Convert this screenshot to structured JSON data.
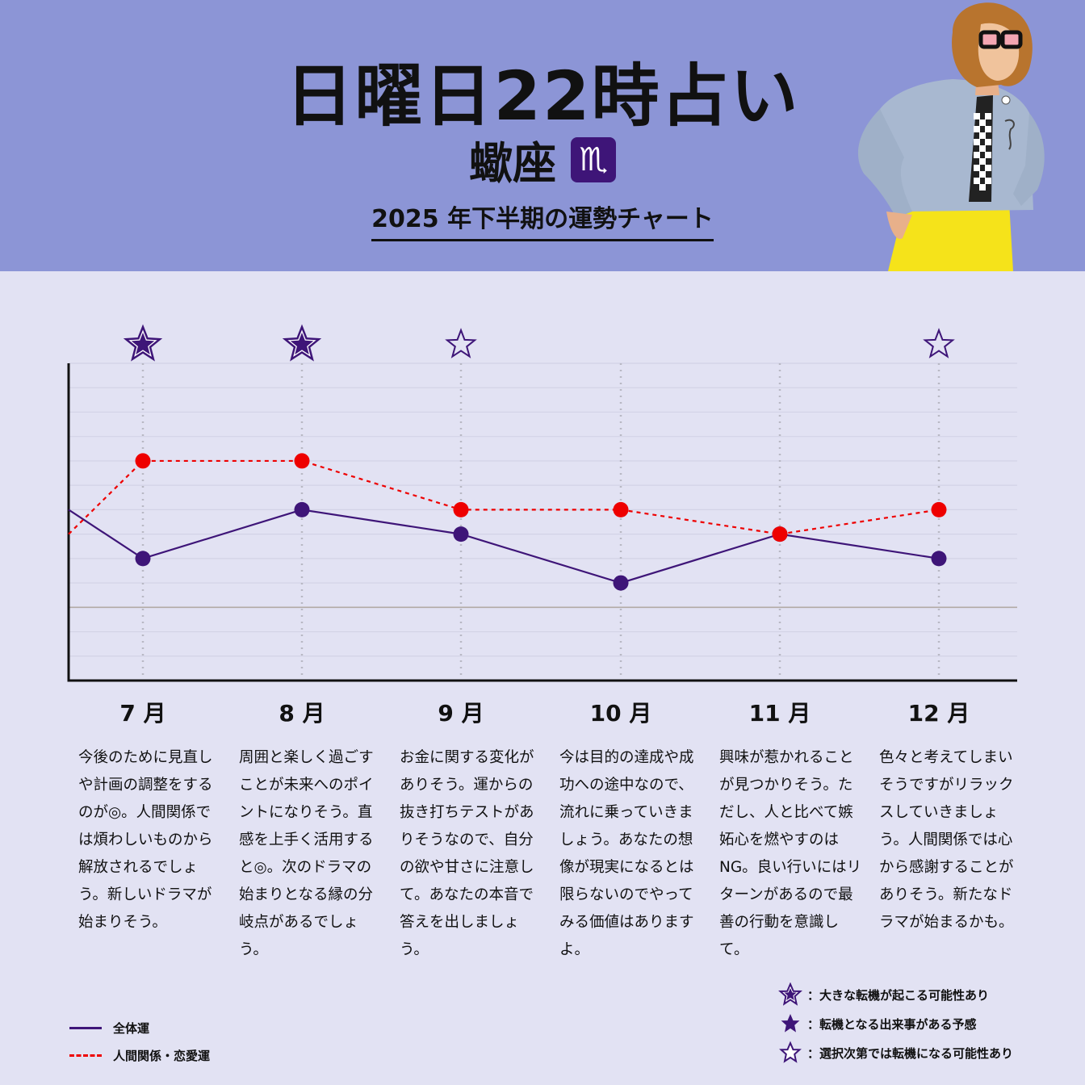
{
  "header": {
    "title": "日曜日22時占い",
    "sign_name": "蠍座",
    "sign_symbol": "♏",
    "subtitle": "2025 年下半期の運勢チャート"
  },
  "colors": {
    "header_bg": "#8c95d6",
    "page_bg": "#e2e2f3",
    "overall_line": "#3e1578",
    "love_line": "#ee0000"
  },
  "chart_data": {
    "type": "line",
    "categories": [
      "7 月",
      "8 月",
      "9 月",
      "10 月",
      "11 月",
      "12 月"
    ],
    "ylim": [
      -3,
      10
    ],
    "grid": true,
    "series": [
      {
        "name": "全体運",
        "values": [
          2,
          4,
          3,
          1,
          3,
          2
        ],
        "line_style": "solid",
        "start_value": 4
      },
      {
        "name": "人間関係・恋愛運",
        "values": [
          6,
          6,
          4,
          4,
          3,
          4
        ],
        "line_style": "dashed",
        "start_value": 3
      }
    ],
    "markers": [
      {
        "month": "7 月",
        "star": "large-filled"
      },
      {
        "month": "8 月",
        "star": "large-filled"
      },
      {
        "month": "9 月",
        "star": "outline"
      },
      {
        "month": "12 月",
        "star": "outline"
      }
    ]
  },
  "descriptions": [
    "今後のために見直しや計画の調整をするのが◎。人間関係では煩わしいものから解放されるでしょう。新しいドラマが始まりそう。",
    "周囲と楽しく過ごすことが未来へのポイントになりそう。直感を上手く活用すると◎。次のドラマの始まりとなる縁の分岐点があるでしょう。",
    "お金に関する変化がありそう。運からの抜き打ちテストがありそうなので、自分の欲や甘さに注意して。あなたの本音で答えを出しましょう。",
    "今は目的の達成や成功への途中なので、流れに乗っていきましょう。あなたの想像が現実になるとは限らないのでやってみる価値はありますよ。",
    "興味が惹かれることが見つかりそう。ただし、人と比べて嫉妬心を燃やすのは NG。良い行いにはリターンがあるので最善の行動を意識して。",
    "色々と考えてしまいそうですがリラックスしていきましょう。人間関係では心から感謝することがありそう。新たなドラマが始まるかも。"
  ],
  "legend": {
    "lines": [
      "全体運",
      "人間関係・恋愛運"
    ],
    "stars": [
      {
        "icon": "large-filled-star-icon",
        "label": "：大きな転機が起こる可能性あり"
      },
      {
        "icon": "filled-star-icon",
        "label": "：転機となる出来事がある予感"
      },
      {
        "icon": "outline-star-icon",
        "label": "：選択次第では転機になる可能性あり"
      }
    ]
  }
}
